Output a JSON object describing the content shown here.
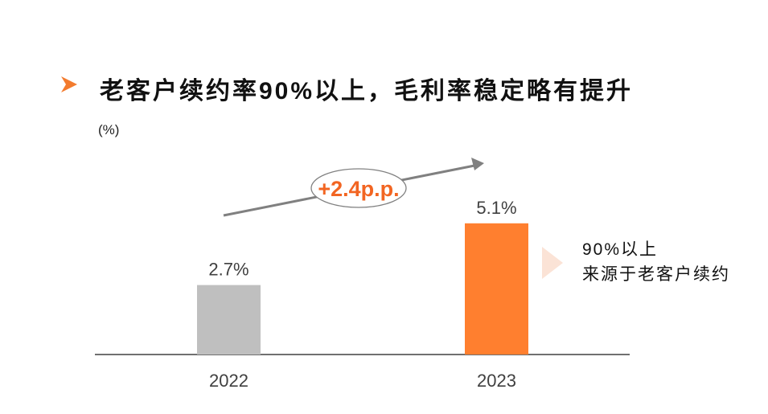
{
  "title": "老客户续约率90%以上，毛利率稳定略有提升",
  "colors": {
    "accent": "#F37B2E",
    "bar_2022": "#BFBFBF",
    "bar_2023": "#FF7F2F",
    "arrow": "#808080",
    "label": "#404040"
  },
  "note": {
    "line1": "90%以上",
    "line2": "来源于老客户续约"
  },
  "chart_data": {
    "type": "bar",
    "title": "老客户续约率90%以上，毛利率稳定略有提升",
    "ylabel": "(%)",
    "xlabel": "",
    "categories": [
      "2022",
      "2023"
    ],
    "values": [
      2.7,
      5.1
    ],
    "data_labels": [
      "2.7%",
      "5.1%"
    ],
    "ylim": [
      0,
      6
    ],
    "grid": false,
    "annotation": "+2.4p.p."
  }
}
